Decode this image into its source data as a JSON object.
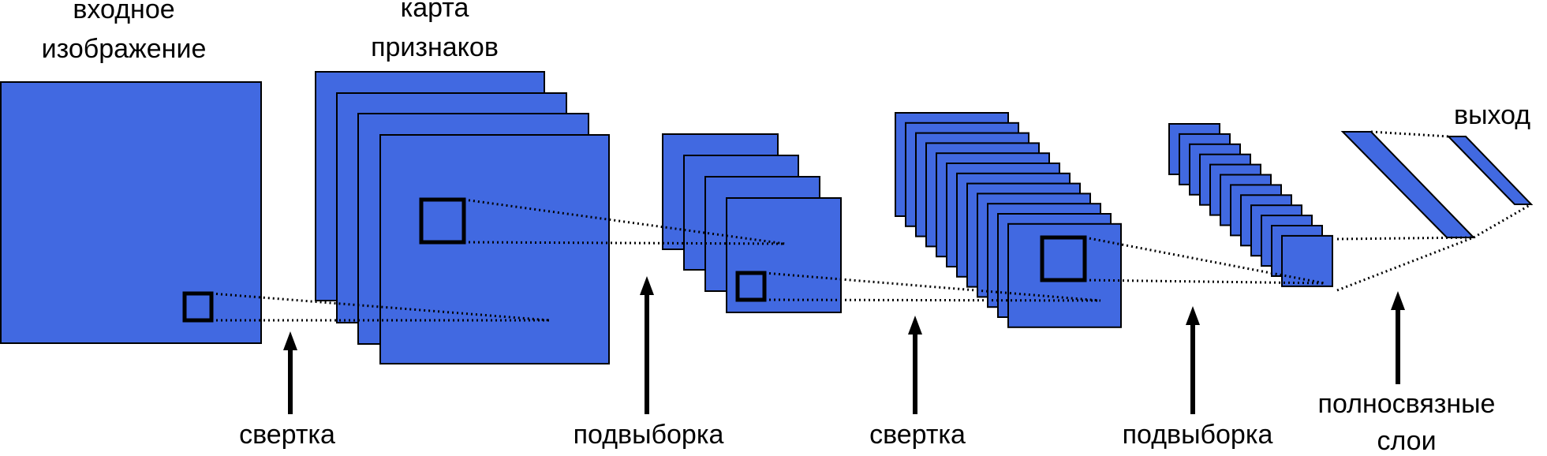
{
  "colors": {
    "map_fill": "#4169e1",
    "stroke": "#000000"
  },
  "labels": {
    "input_image": [
      "входное",
      "изображение"
    ],
    "feature_maps": [
      "карта",
      "признаков"
    ],
    "output": "выход",
    "steps": {
      "conv1": "свертка",
      "pool1": "подвыборка",
      "conv2": "свертка",
      "pool2": "подвыборка",
      "fc": [
        "полносвязные",
        "слои"
      ]
    }
  }
}
